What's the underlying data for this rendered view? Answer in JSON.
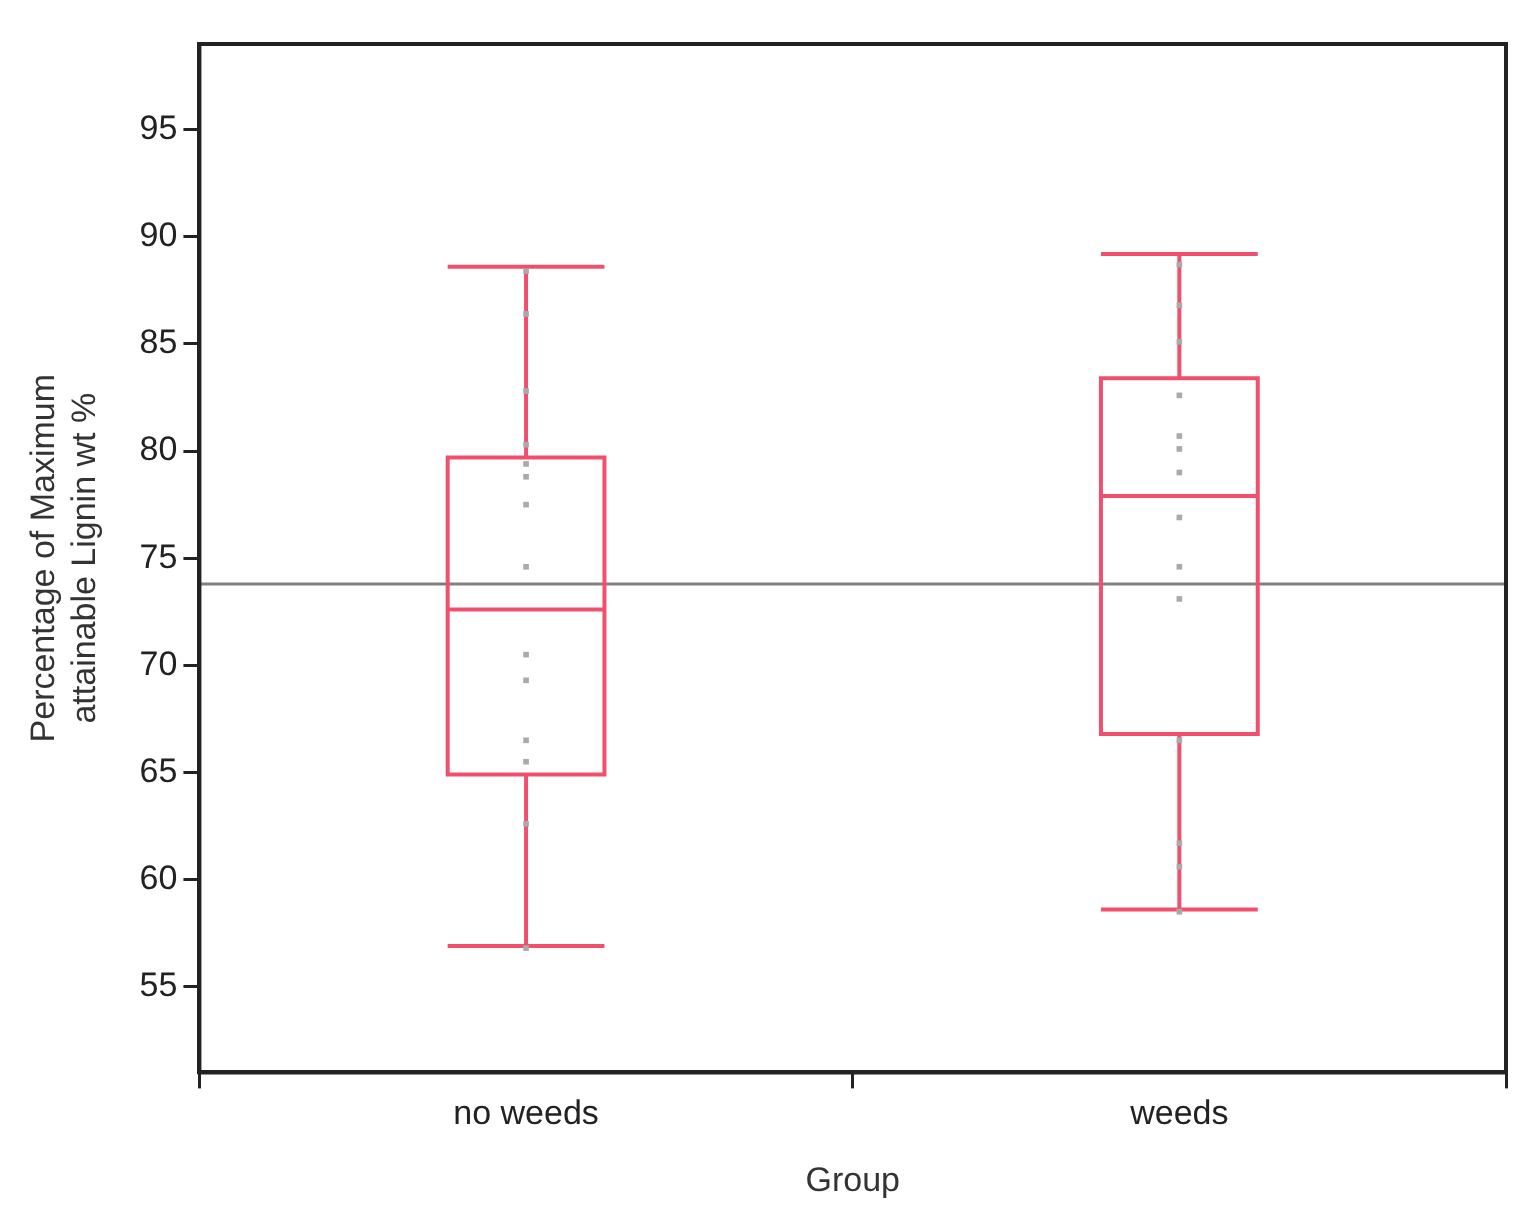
{
  "chart_data": {
    "type": "box",
    "xlabel": "Group",
    "ylabel": "Percentage of Maximum attainable Lignin wt %",
    "categories": [
      "no weeds",
      "weeds"
    ],
    "series": [
      {
        "color": "#f0506e",
        "boxes": [
          {
            "low": 56.9,
            "q1": 64.9,
            "median": 72.6,
            "q3": 79.7,
            "high": 88.6
          },
          {
            "low": 58.6,
            "q1": 66.8,
            "median": 77.9,
            "q3": 83.4,
            "high": 89.2
          }
        ]
      },
      {
        "type": "scatter",
        "color": "#aaaaaa",
        "x": [
          "no weeds",
          "no weeds",
          "no weeds",
          "no weeds",
          "no weeds",
          "no weeds",
          "no weeds",
          "no weeds",
          "no weeds",
          "no weeds",
          "no weeds",
          "no weeds",
          "no weeds",
          "no weeds",
          "weeds",
          "weeds",
          "weeds",
          "weeds",
          "weeds",
          "weeds",
          "weeds",
          "weeds",
          "weeds",
          "weeds",
          "weeds",
          "weeds",
          "weeds",
          "weeds"
        ],
        "values": [
          88.4,
          86.4,
          82.8,
          80.3,
          79.4,
          78.8,
          77.5,
          74.6,
          70.5,
          69.3,
          66.5,
          65.5,
          62.6,
          56.8,
          88.7,
          86.8,
          85.1,
          82.6,
          80.7,
          80.1,
          79.0,
          76.9,
          74.6,
          73.1,
          66.5,
          61.7,
          60.6,
          58.5
        ]
      }
    ],
    "ylim": [
      51,
      99
    ],
    "yticks": [
      55,
      60,
      65,
      70,
      75,
      80,
      85,
      90,
      95
    ],
    "ref_lines": [
      {
        "axis": "y",
        "value": 73.8,
        "color": "#808080"
      }
    ],
    "grid": false,
    "legend": false,
    "marker": "square"
  }
}
